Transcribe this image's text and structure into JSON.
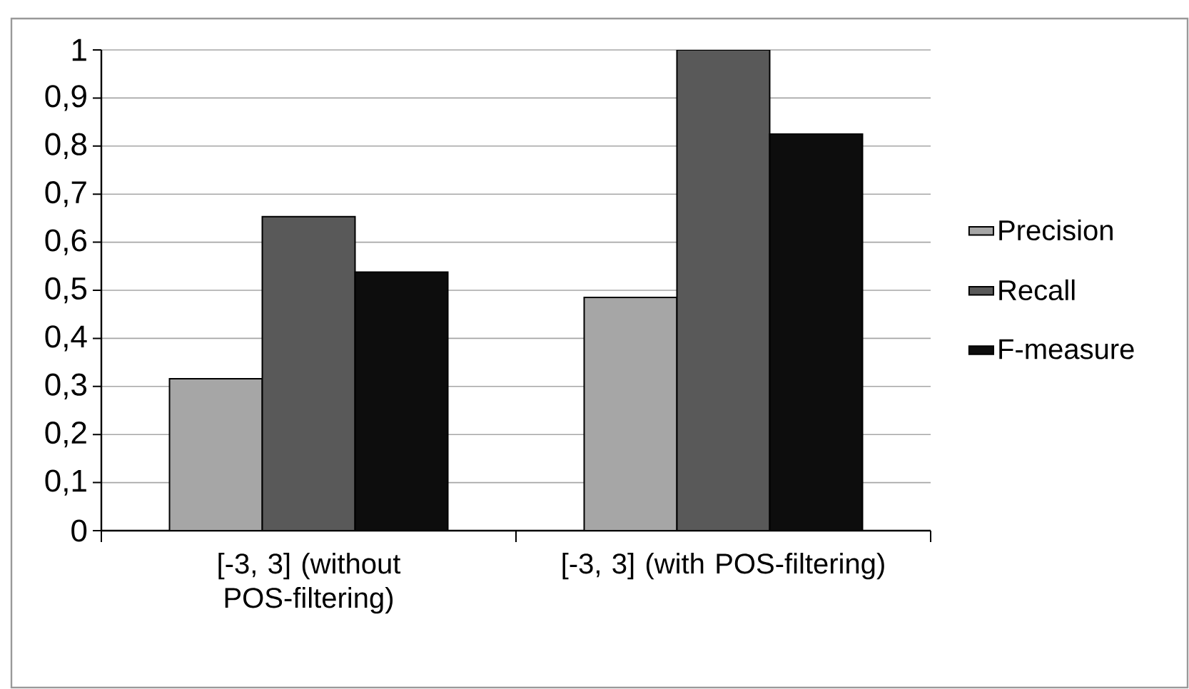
{
  "chart_data": {
    "type": "bar",
    "categories": [
      "[-3, 3] (without POS-filtering)",
      "[-3, 3] (with POS-filtering)"
    ],
    "series": [
      {
        "name": "Precision",
        "color": "#a6a6a6",
        "values": [
          0.316,
          0.485
        ]
      },
      {
        "name": "Recall",
        "color": "#595959",
        "values": [
          0.653,
          1.0
        ]
      },
      {
        "name": "F-measure",
        "color": "#0d0d0d",
        "values": [
          0.538,
          0.825
        ]
      }
    ],
    "ylim": [
      0,
      1
    ],
    "yticks": [
      0,
      {
        "value": 0.1,
        "label": "0,1"
      },
      {
        "value": 0.2,
        "label": "0,2"
      },
      {
        "value": 0.3,
        "label": "0,3"
      },
      {
        "value": 0.4,
        "label": "0,4"
      },
      {
        "value": 0.5,
        "label": "0,5"
      },
      {
        "value": 0.6,
        "label": "0,6"
      },
      {
        "value": 0.7,
        "label": "0,7"
      },
      {
        "value": 0.8,
        "label": "0,8"
      },
      {
        "value": 0.9,
        "label": "0,9"
      },
      1
    ],
    "grid": "y",
    "legend": "right"
  }
}
